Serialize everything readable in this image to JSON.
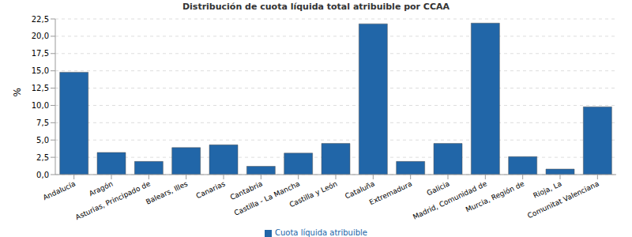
{
  "chart_data": {
    "type": "bar",
    "title": "Distribución de cuota líquida total atribuible por CCAA",
    "y_label": "%",
    "categories": [
      "Andalucía",
      "Aragón",
      "Asturias, Principado de",
      "Balears, Illes",
      "Canarias",
      "Cantabria",
      "Castilla - La Mancha",
      "Castilla y León",
      "Cataluña",
      "Extremadura",
      "Galicia",
      "Madrid, Comunidad de",
      "Murcia, Región de",
      "Rioja, La",
      "Comunitat Valenciana"
    ],
    "series": [
      {
        "name": "Cuota líquida atribuible",
        "color": "#2166a8",
        "values": [
          14.8,
          3.2,
          1.9,
          3.9,
          4.3,
          1.2,
          3.1,
          4.5,
          21.8,
          1.9,
          4.5,
          21.9,
          2.6,
          0.8,
          9.8
        ]
      }
    ],
    "ylim": [
      0,
      22.5
    ],
    "yticks": [
      {
        "value": 0,
        "label": "0,0"
      },
      {
        "value": 2.5,
        "label": "2,5"
      },
      {
        "value": 5,
        "label": "5,0"
      },
      {
        "value": 7.5,
        "label": "7,5"
      },
      {
        "value": 10,
        "label": "10,0"
      },
      {
        "value": 12.5,
        "label": "12,5"
      },
      {
        "value": 15,
        "label": "15,0"
      },
      {
        "value": 17.5,
        "label": "17,5"
      },
      {
        "value": 20,
        "label": "20,0"
      },
      {
        "value": 22.5,
        "label": "22,5"
      }
    ],
    "grid": true,
    "legend": "bottom"
  }
}
